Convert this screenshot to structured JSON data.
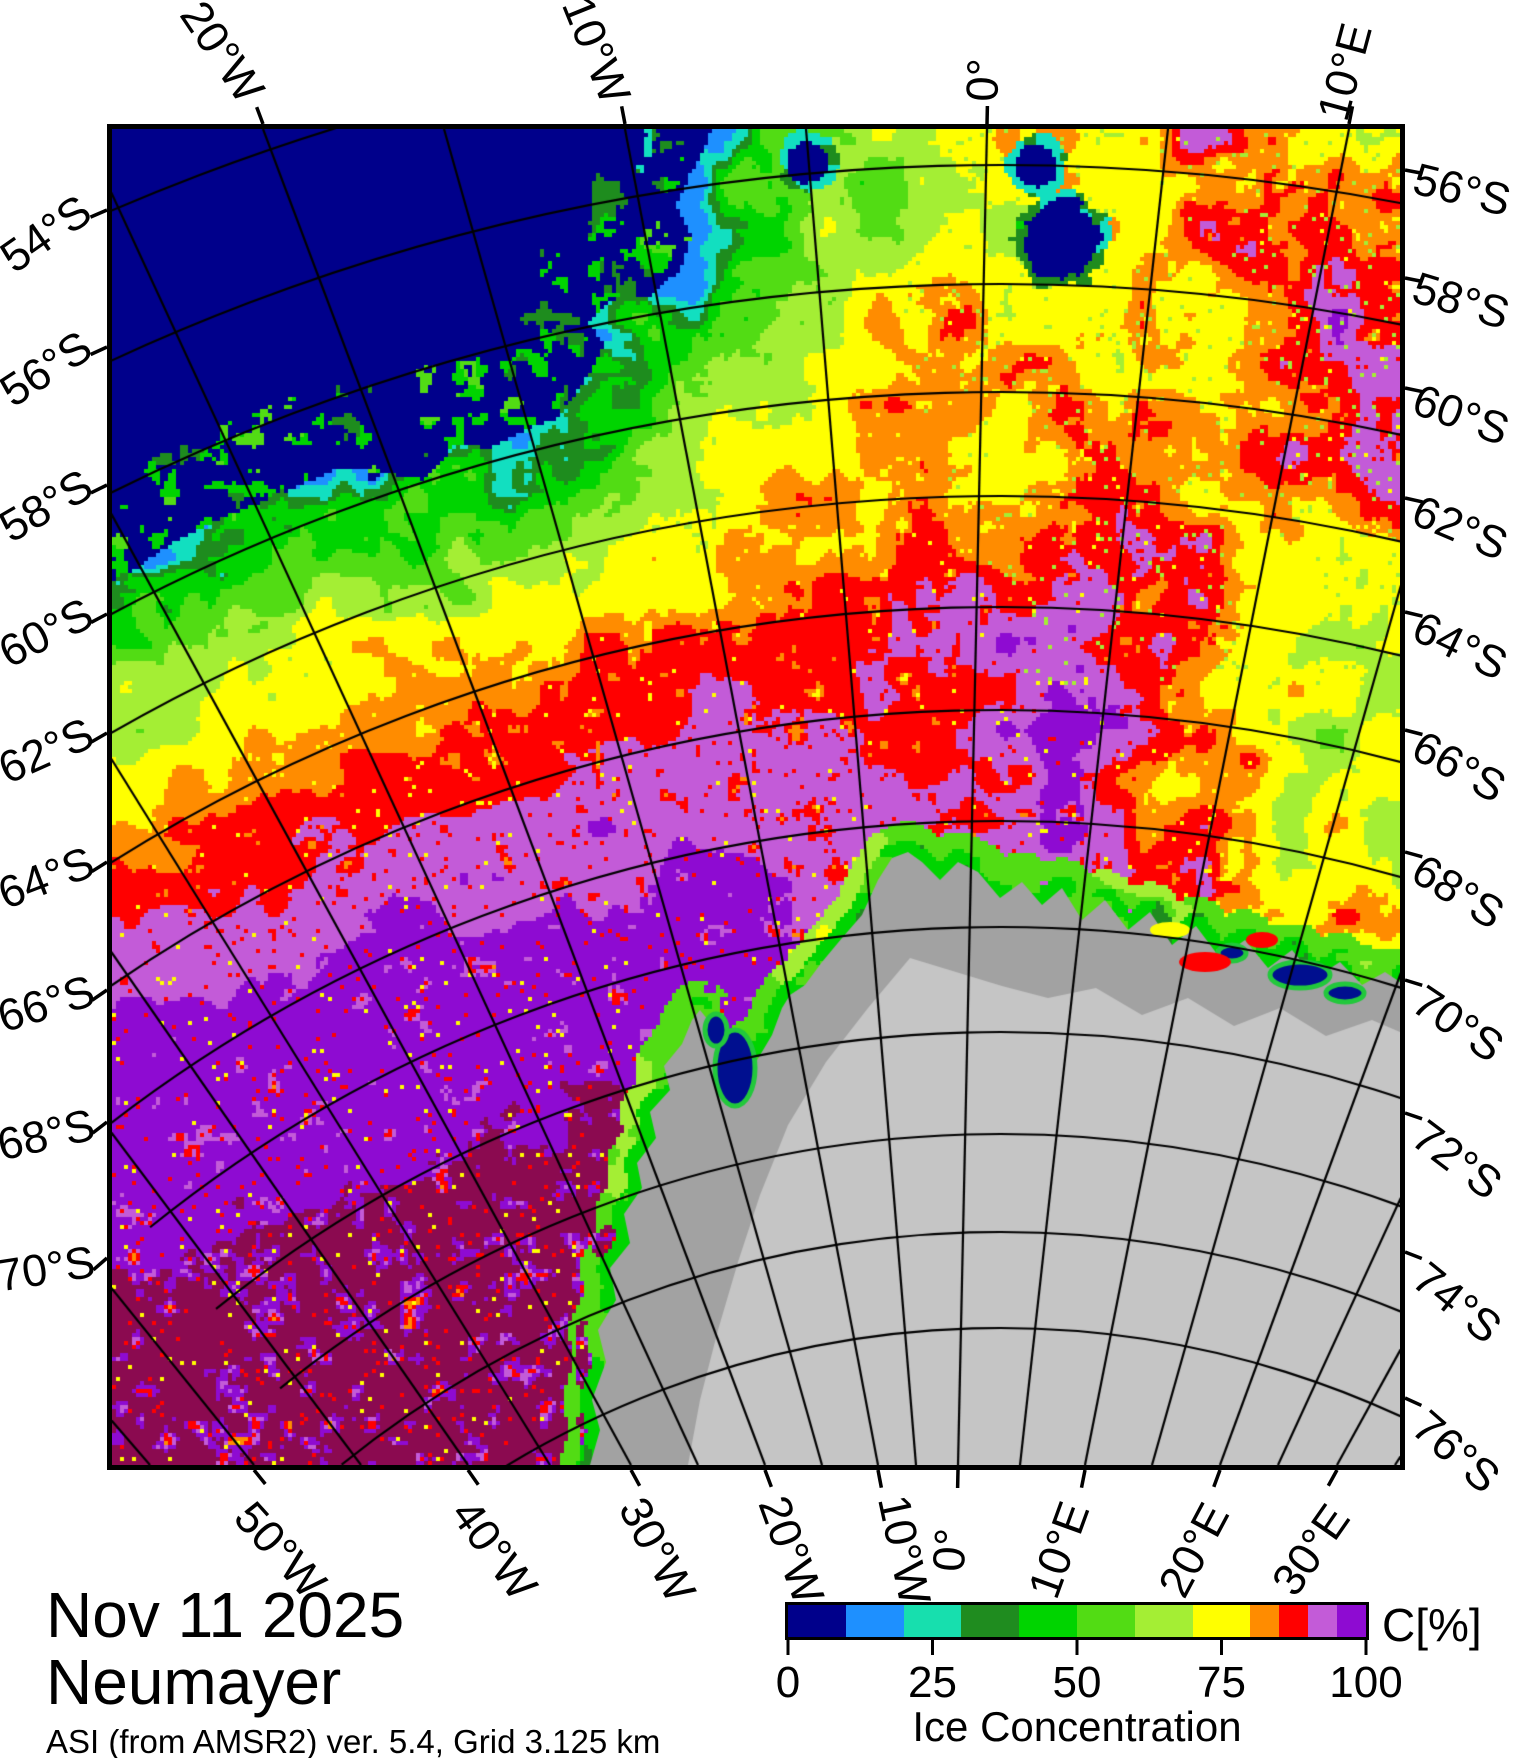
{
  "title_block": {
    "date": "Nov 11 2025",
    "station": "Neumayer",
    "source": "ASI (from AMSR2) ver. 5.4,  Grid 3.125 km"
  },
  "axes": {
    "top": [
      "20°W",
      "10°W",
      "0°",
      "10°E"
    ],
    "bottom": [
      "50°W",
      "40°W",
      "30°W",
      "20°W",
      "10°W",
      "0°",
      "10°E",
      "20°E",
      "30°E"
    ],
    "left": [
      "54°S",
      "56°S",
      "58°S",
      "60°S",
      "62°S",
      "64°S",
      "66°S",
      "68°S",
      "70°S"
    ],
    "right": [
      "56°S",
      "58°S",
      "60°S",
      "62°S",
      "64°S",
      "66°S",
      "68°S",
      "70°S",
      "72°S",
      "74°S",
      "76°S"
    ]
  },
  "colorbar": {
    "unit_label": "C[%]",
    "axis_label": "Ice Concentration",
    "tick_labels": [
      "0",
      "25",
      "50",
      "75",
      "100"
    ],
    "range": [
      0,
      100
    ],
    "segments": [
      {
        "from": 0,
        "to": 10,
        "color": "#00008B"
      },
      {
        "from": 10,
        "to": 20,
        "color": "#1E90FF"
      },
      {
        "from": 20,
        "to": 30,
        "color": "#17DFAE"
      },
      {
        "from": 30,
        "to": 40,
        "color": "#1F8C1F"
      },
      {
        "from": 40,
        "to": 50,
        "color": "#00D400"
      },
      {
        "from": 50,
        "to": 60,
        "color": "#52DC14"
      },
      {
        "from": 60,
        "to": 70,
        "color": "#A4EE34"
      },
      {
        "from": 70,
        "to": 80,
        "color": "#FFFF00"
      },
      {
        "from": 80,
        "to": 85,
        "color": "#FF8C00"
      },
      {
        "from": 85,
        "to": 90,
        "color": "#FF0000"
      },
      {
        "from": 90,
        "to": 95,
        "color": "#C35BD8"
      },
      {
        "from": 95,
        "to": 100,
        "color": "#8E0BD2"
      }
    ]
  },
  "map_colors": {
    "open_water": "#00008B",
    "ice_max": "#8B0A50",
    "land": "#C5C5C5",
    "ice_shelf": "#A2A2A2",
    "graticule": "#000000"
  }
}
